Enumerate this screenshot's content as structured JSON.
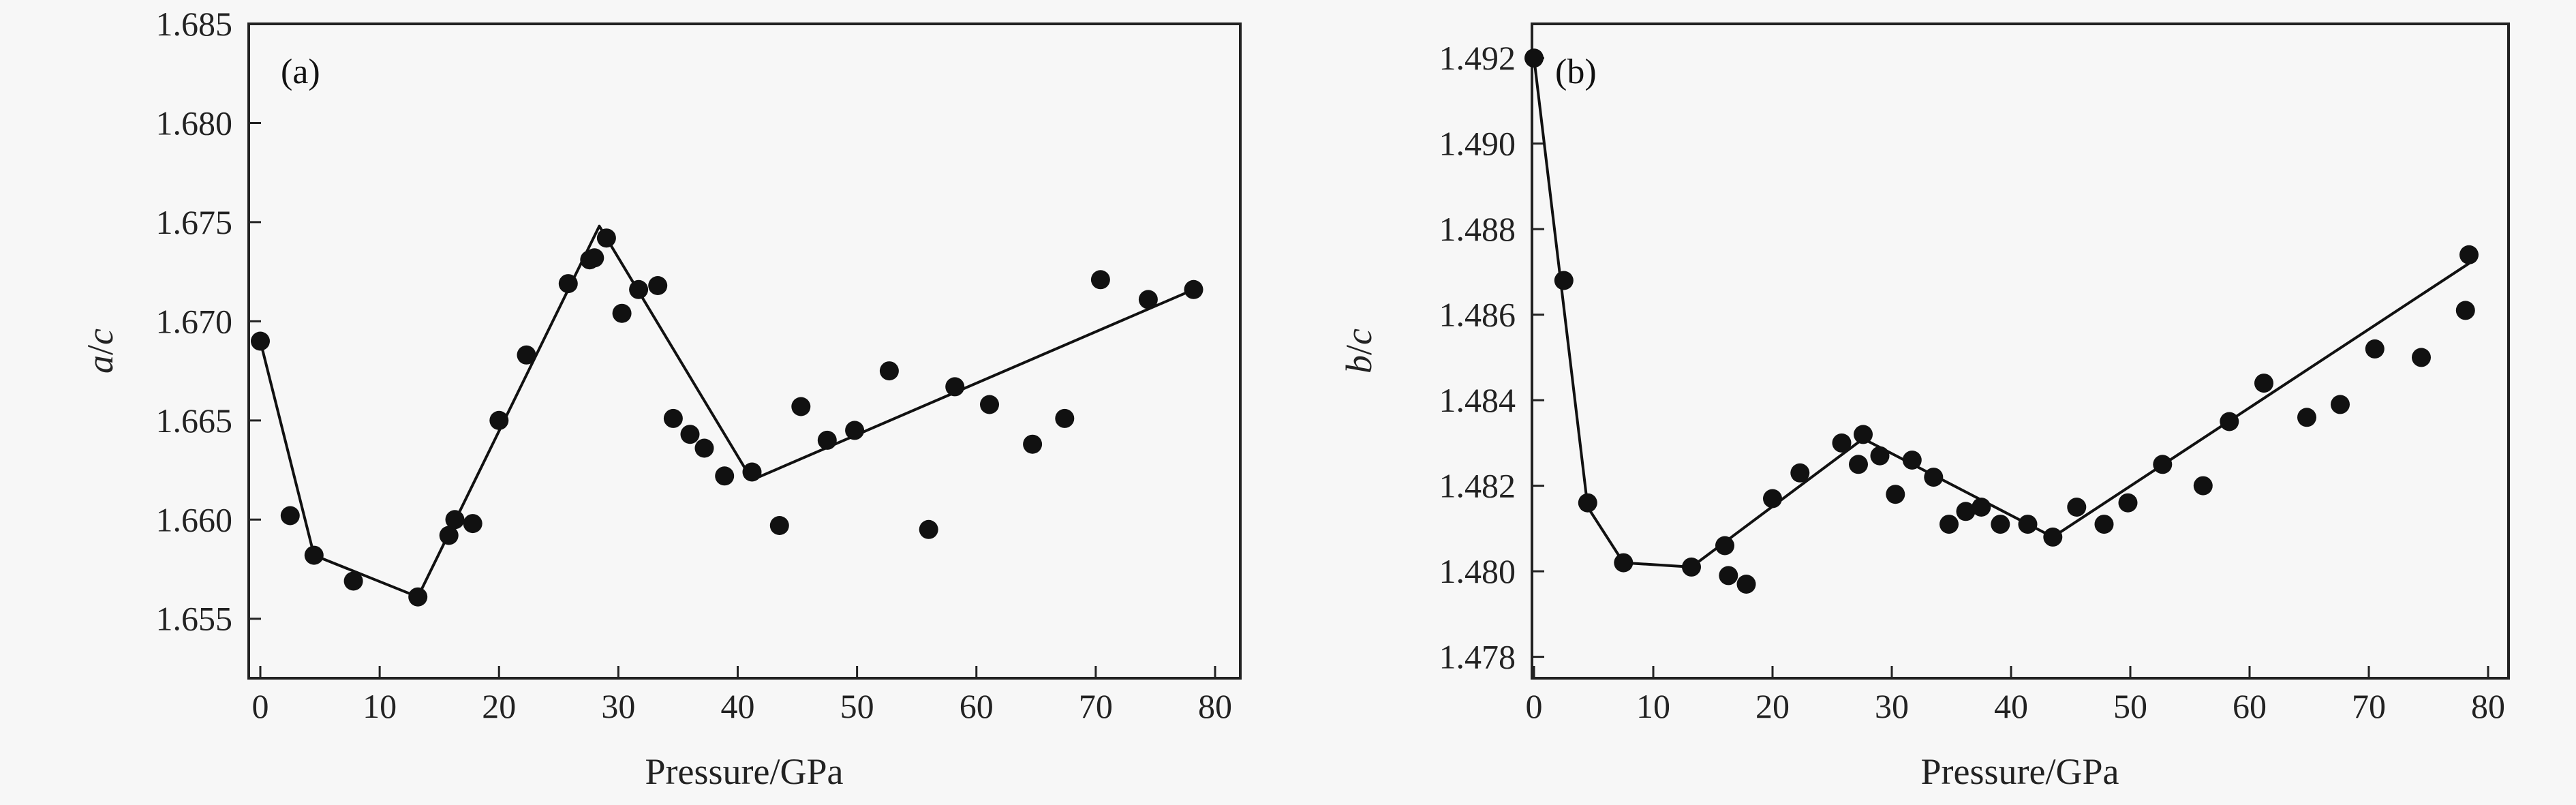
{
  "chart_data": [
    {
      "type": "scatter",
      "panel_label": "(a)",
      "xlabel": "Pressure/GPa",
      "ylabel": {
        "italic1": "a",
        "sep": "/",
        "italic2": "c"
      },
      "xlim": [
        0,
        80
      ],
      "ylim": [
        1.652,
        1.685
      ],
      "xticks": [
        0,
        10,
        20,
        30,
        40,
        50,
        60,
        70,
        80
      ],
      "yticks": [
        1.655,
        1.66,
        1.665,
        1.67,
        1.675,
        1.68,
        1.685
      ],
      "xtick_labels": [
        "0",
        "10",
        "20",
        "30",
        "40",
        "50",
        "60",
        "70",
        "80"
      ],
      "ytick_labels": [
        "1.655",
        "1.660",
        "1.665",
        "1.670",
        "1.675",
        "1.680",
        "1.685"
      ],
      "points": [
        [
          0.0,
          1.669
        ],
        [
          2.5,
          1.6602
        ],
        [
          4.5,
          1.6582
        ],
        [
          7.8,
          1.6569
        ],
        [
          13.2,
          1.6561
        ],
        [
          15.8,
          1.6592
        ],
        [
          16.3,
          1.66
        ],
        [
          17.8,
          1.6598
        ],
        [
          20.0,
          1.665
        ],
        [
          22.3,
          1.6683
        ],
        [
          25.8,
          1.6719
        ],
        [
          27.6,
          1.6731
        ],
        [
          28.0,
          1.6732
        ],
        [
          29.0,
          1.6742
        ],
        [
          30.3,
          1.6704
        ],
        [
          31.7,
          1.6716
        ],
        [
          33.3,
          1.6718
        ],
        [
          34.6,
          1.6651
        ],
        [
          36.0,
          1.6643
        ],
        [
          37.2,
          1.6636
        ],
        [
          38.9,
          1.6622
        ],
        [
          41.2,
          1.6624
        ],
        [
          43.5,
          1.6597
        ],
        [
          45.3,
          1.6657
        ],
        [
          47.5,
          1.664
        ],
        [
          49.8,
          1.6645
        ],
        [
          52.7,
          1.6675
        ],
        [
          56.0,
          1.6595
        ],
        [
          58.2,
          1.6667
        ],
        [
          61.1,
          1.6658
        ],
        [
          64.7,
          1.6638
        ],
        [
          67.4,
          1.6651
        ],
        [
          70.4,
          1.6721
        ],
        [
          74.4,
          1.6711
        ],
        [
          78.2,
          1.6716
        ]
      ],
      "fit_line": [
        [
          0.0,
          1.669
        ],
        [
          4.5,
          1.6582
        ],
        [
          13.2,
          1.6561
        ],
        [
          28.4,
          1.6748
        ],
        [
          41.2,
          1.662
        ],
        [
          78.2,
          1.6716
        ]
      ],
      "grid": false
    },
    {
      "type": "scatter",
      "panel_label": "(b)",
      "xlabel": "Pressure/GPa",
      "ylabel": {
        "italic1": "b",
        "sep": "/",
        "italic2": "c"
      },
      "xlim": [
        0,
        80
      ],
      "ylim": [
        1.4775,
        1.4928
      ],
      "xticks": [
        0,
        10,
        20,
        30,
        40,
        50,
        60,
        70,
        80
      ],
      "yticks": [
        1.478,
        1.48,
        1.482,
        1.484,
        1.486,
        1.488,
        1.49,
        1.492
      ],
      "xtick_labels": [
        "0",
        "10",
        "20",
        "30",
        "40",
        "50",
        "60",
        "70",
        "80"
      ],
      "ytick_labels": [
        "1.478",
        "1.480",
        "1.482",
        "1.484",
        "1.486",
        "1.488",
        "1.490",
        "1.492"
      ],
      "points": [
        [
          0.0,
          1.492
        ],
        [
          2.5,
          1.4868
        ],
        [
          4.5,
          1.4816
        ],
        [
          7.5,
          1.4802
        ],
        [
          13.2,
          1.4801
        ],
        [
          16.0,
          1.4806
        ],
        [
          16.3,
          1.4799
        ],
        [
          17.8,
          1.4797
        ],
        [
          20.0,
          1.4817
        ],
        [
          22.3,
          1.4823
        ],
        [
          25.8,
          1.483
        ],
        [
          27.2,
          1.4825
        ],
        [
          27.6,
          1.4832
        ],
        [
          29.0,
          1.4827
        ],
        [
          30.3,
          1.4818
        ],
        [
          31.7,
          1.4826
        ],
        [
          33.5,
          1.4822
        ],
        [
          34.8,
          1.4811
        ],
        [
          36.2,
          1.4814
        ],
        [
          37.5,
          1.4815
        ],
        [
          39.1,
          1.4811
        ],
        [
          41.4,
          1.4811
        ],
        [
          43.5,
          1.4808
        ],
        [
          45.5,
          1.4815
        ],
        [
          47.8,
          1.4811
        ],
        [
          49.8,
          1.4816
        ],
        [
          52.7,
          1.4825
        ],
        [
          56.1,
          1.482
        ],
        [
          58.3,
          1.4835
        ],
        [
          61.2,
          1.4844
        ],
        [
          64.8,
          1.4836
        ],
        [
          67.6,
          1.4839
        ],
        [
          70.5,
          1.4852
        ],
        [
          74.4,
          1.485
        ],
        [
          78.1,
          1.4861
        ],
        [
          78.4,
          1.4874
        ]
      ],
      "fit_line": [
        [
          0.0,
          1.492
        ],
        [
          4.5,
          1.4815
        ],
        [
          7.5,
          1.4802
        ],
        [
          13.2,
          1.4801
        ],
        [
          27.6,
          1.4831
        ],
        [
          43.5,
          1.4808
        ],
        [
          78.4,
          1.4872
        ]
      ],
      "grid": false
    }
  ],
  "colors": {
    "marker": "#111111",
    "line": "#111111",
    "axis": "#222222",
    "background": "#f7f7f7"
  }
}
